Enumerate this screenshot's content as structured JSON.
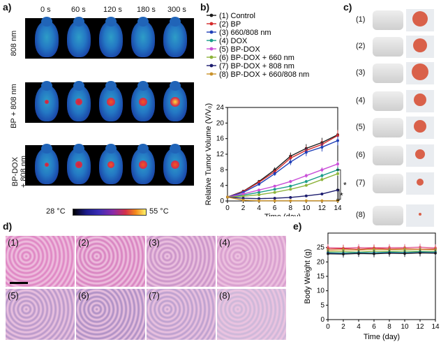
{
  "panel_labels": {
    "a": "a)",
    "b": "b)",
    "c": "c)",
    "d": "d)",
    "e": "e)"
  },
  "panel_a": {
    "times": [
      "0 s",
      "60 s",
      "120 s",
      "180 s",
      "300 s"
    ],
    "row_labels": [
      "808 nm",
      "BP + 808 nm",
      "BP-DOX\n+ 808 nm"
    ],
    "colorbar_min": "28 °C",
    "colorbar_max": "55 °C",
    "spot_intensity": [
      [
        0,
        0,
        0,
        0,
        0
      ],
      [
        0.1,
        0.5,
        0.7,
        0.8,
        0.95
      ],
      [
        0.1,
        0.4,
        0.6,
        0.8,
        0.85
      ]
    ]
  },
  "panel_c": {
    "labels": [
      "(1)",
      "(2)",
      "(3)",
      "(4)",
      "(5)",
      "(6)",
      "(7)",
      "(8)"
    ]
  },
  "panel_d": {
    "labels": [
      "(1)",
      "(2)",
      "(3)",
      "(4)",
      "(5)",
      "(6)",
      "(7)",
      "(8)"
    ],
    "colors": [
      "#dd7fc0",
      "#d67cbd",
      "#c68fc6",
      "#d59acc",
      "#b494c8",
      "#a78ac2",
      "#b79ccd",
      "#c9b6d8"
    ]
  },
  "chart_data": [
    {
      "type": "line",
      "xlabel": "Time (day)",
      "ylabel": "Relative Tumor Volume (V/V₀)",
      "x": [
        0,
        2,
        4,
        6,
        8,
        10,
        12,
        14
      ],
      "xlim": [
        0,
        14
      ],
      "ylim": [
        0,
        24
      ],
      "yticks": [
        0,
        4,
        8,
        12,
        16,
        20,
        24
      ],
      "annotations": [
        "*",
        "*"
      ],
      "series": [
        {
          "name": "(1) Control",
          "color": "#1a1a1a",
          "values": [
            1,
            2.5,
            5,
            8,
            11.5,
            13.5,
            15,
            17
          ]
        },
        {
          "name": "(2) BP",
          "color": "#d42a2a",
          "values": [
            1,
            2.4,
            4.8,
            7.5,
            11,
            13,
            14.5,
            16.8
          ]
        },
        {
          "name": "(3) 660/808 nm",
          "color": "#1f3fb8",
          "values": [
            1,
            2.2,
            4.3,
            7,
            10,
            12.5,
            13.8,
            15.5
          ]
        },
        {
          "name": "(4) DOX",
          "color": "#1a9d8a",
          "values": [
            1,
            1.5,
            2.2,
            3,
            3.8,
            5,
            6.5,
            8
          ]
        },
        {
          "name": "(5) BP-DOX",
          "color": "#c94ed8",
          "values": [
            1,
            1.8,
            2.8,
            3.8,
            5,
            6.5,
            8,
            9.5
          ]
        },
        {
          "name": "(6) BP-DOX + 660 nm",
          "color": "#8db33a",
          "values": [
            1,
            1.2,
            1.6,
            2.2,
            3,
            4,
            5.5,
            7
          ]
        },
        {
          "name": "(7) BP-DOX + 808 nm",
          "color": "#1c1c6e",
          "values": [
            1,
            0.7,
            0.6,
            0.7,
            0.9,
            1.3,
            1.8,
            2.8
          ]
        },
        {
          "name": "(8) BP-DOX + 660/808 nm",
          "color": "#c9922a",
          "values": [
            1,
            0.2,
            0.05,
            0.05,
            0.05,
            0.05,
            0.05,
            0.05
          ]
        }
      ]
    },
    {
      "type": "line",
      "xlabel": "Time (day)",
      "ylabel": "Body Weight (g)",
      "x": [
        0,
        2,
        4,
        6,
        8,
        10,
        12,
        14
      ],
      "xtick_labels": [
        "0",
        "2",
        "4",
        "6",
        "8",
        "10",
        "12",
        "14"
      ],
      "ylim": [
        0,
        30
      ],
      "yticks": [
        0,
        5,
        10,
        15,
        20,
        25
      ],
      "series": [
        {
          "color": "#e0508a",
          "values": [
            25,
            24.8,
            25,
            24.9,
            25,
            25,
            25.1,
            24.9
          ]
        },
        {
          "color": "#d42a2a",
          "values": [
            24.5,
            24.6,
            24.4,
            24.7,
            24.5,
            24.6,
            24.4,
            24.5
          ]
        },
        {
          "color": "#c9922a",
          "values": [
            24,
            24.2,
            24.1,
            24.3,
            24.2,
            24.4,
            24.3,
            24.2
          ]
        },
        {
          "color": "#8db33a",
          "values": [
            23.5,
            23.6,
            23.4,
            23.7,
            23.6,
            23.8,
            23.7,
            23.6
          ]
        },
        {
          "color": "#1a9d8a",
          "values": [
            23.2,
            23.1,
            23.3,
            23.2,
            23.4,
            23.3,
            23.5,
            23.4
          ]
        },
        {
          "color": "#1f3fb8",
          "values": [
            23,
            22.8,
            23,
            22.9,
            23.1,
            23,
            23.2,
            23.1
          ]
        },
        {
          "color": "#1a1a1a",
          "values": [
            22.8,
            22.7,
            22.9,
            22.8,
            23,
            22.9,
            23.1,
            23
          ]
        }
      ]
    }
  ]
}
